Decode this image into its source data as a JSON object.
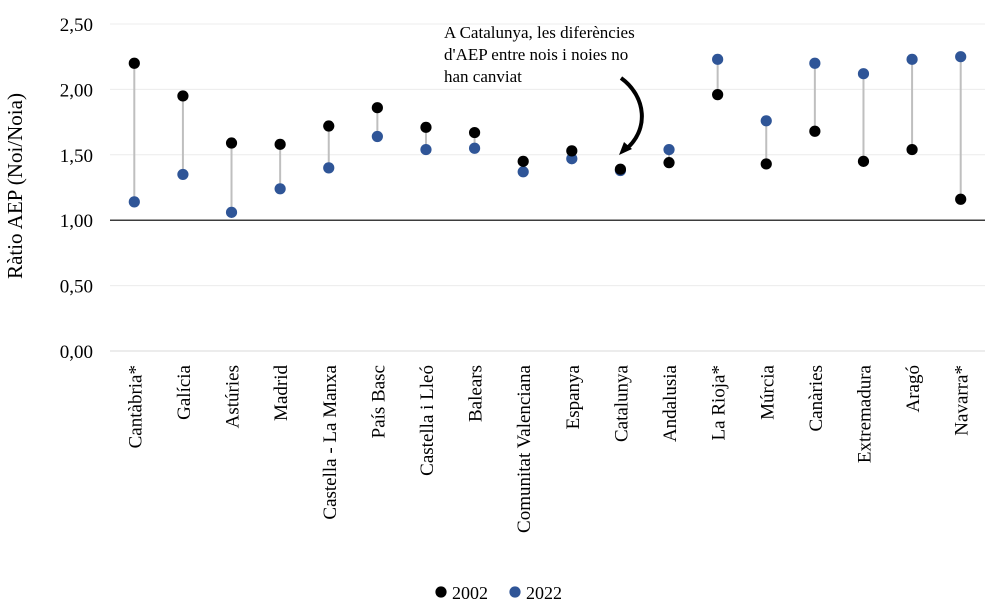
{
  "chart_data": {
    "type": "scatter",
    "ylabel": "Ràtio AEP (Noi/Noia)",
    "ylim": [
      0,
      2.5
    ],
    "yticks": [
      "0,00",
      "0,50",
      "1,00",
      "1,50",
      "2,00",
      "2,50"
    ],
    "reference_line": 1.0,
    "categories": [
      "Cantàbria*",
      "Galícia",
      "Astúries",
      "Madrid",
      "Castella - La Manxa",
      "País Basc",
      "Castella i Lleó",
      "Balears",
      "Comunitat Valenciana",
      "Espanya",
      "Catalunya",
      "Andalusia",
      "La Rioja*",
      "Múrcia",
      "Canàries",
      "Extremadura",
      "Aragó",
      "Navarra*"
    ],
    "series": [
      {
        "name": "2002",
        "color": "#000000",
        "values": [
          2.2,
          1.95,
          1.59,
          1.58,
          1.72,
          1.86,
          1.71,
          1.67,
          1.45,
          1.53,
          1.39,
          1.44,
          1.96,
          1.43,
          1.68,
          1.45,
          1.54,
          1.16
        ]
      },
      {
        "name": "2022",
        "color": "#2f5597",
        "values": [
          1.14,
          1.35,
          1.06,
          1.24,
          1.4,
          1.64,
          1.54,
          1.55,
          1.37,
          1.47,
          1.38,
          1.54,
          2.23,
          1.76,
          2.2,
          2.12,
          2.23,
          2.25
        ]
      }
    ],
    "connector_color": "#bfbfbf",
    "annotation": {
      "lines": [
        "A Catalunya, les diferències",
        "d'AEP entre nois i noies no",
        "han canviat"
      ],
      "target_category": "Catalunya"
    },
    "grid": true,
    "legend": "bottom"
  }
}
